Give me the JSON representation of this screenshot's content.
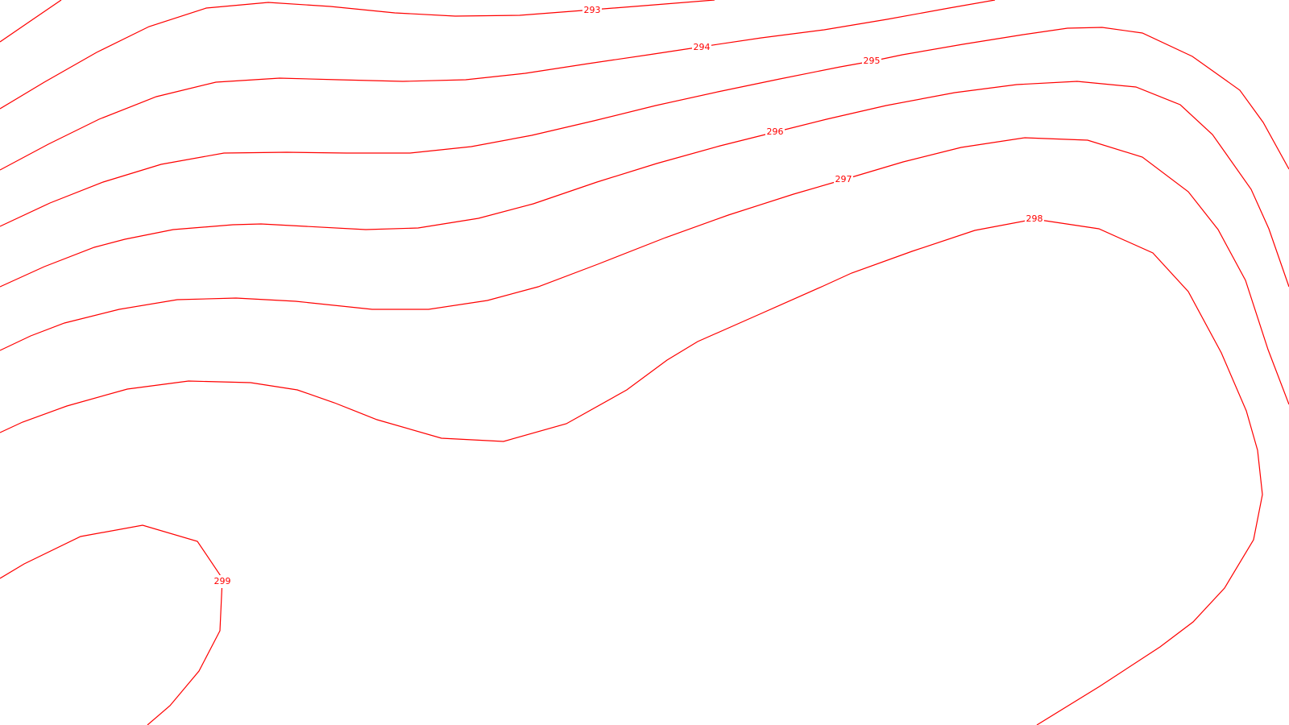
{
  "map": {
    "line_color": "#ff0000",
    "background_color": "#ffffff",
    "contours": [
      {
        "label": "293"
      },
      {
        "label": "294"
      },
      {
        "label": "295"
      },
      {
        "label": "296"
      },
      {
        "label": "297"
      },
      {
        "label": "298"
      },
      {
        "label": "299"
      }
    ]
  }
}
